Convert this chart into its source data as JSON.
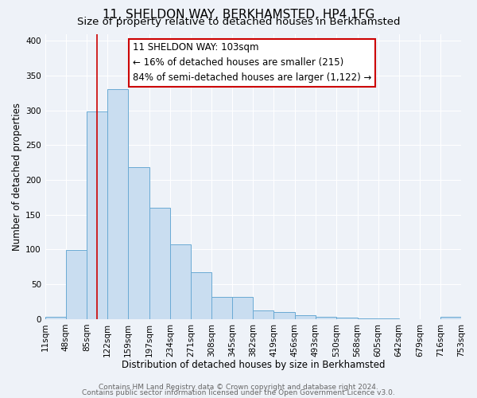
{
  "title": "11, SHELDON WAY, BERKHAMSTED, HP4 1FG",
  "subtitle": "Size of property relative to detached houses in Berkhamsted",
  "xlabel": "Distribution of detached houses by size in Berkhamsted",
  "ylabel": "Number of detached properties",
  "footer_lines": [
    "Contains HM Land Registry data © Crown copyright and database right 2024.",
    "Contains public sector information licensed under the Open Government Licence v3.0."
  ],
  "bin_edges": [
    11,
    48,
    85,
    122,
    159,
    197,
    234,
    271,
    308,
    345,
    382,
    419,
    456,
    493,
    530,
    568,
    605,
    642,
    679,
    716,
    753
  ],
  "bin_counts": [
    3,
    99,
    299,
    330,
    218,
    160,
    107,
    67,
    32,
    32,
    12,
    10,
    5,
    3,
    2,
    1,
    1,
    0,
    0,
    3
  ],
  "bar_facecolor": "#c9ddf0",
  "bar_edgecolor": "#6aaad4",
  "vline_x": 103,
  "vline_color": "#cc0000",
  "annotation_box_text": "11 SHELDON WAY: 103sqm\n← 16% of detached houses are smaller (215)\n84% of semi-detached houses are larger (1,122) →",
  "annotation_box_edgecolor": "#cc0000",
  "annotation_box_facecolor": "white",
  "ylim": [
    0,
    410
  ],
  "xlim": [
    11,
    753
  ],
  "background_color": "#eef2f8",
  "grid_color": "#ffffff",
  "title_fontsize": 11,
  "subtitle_fontsize": 9.5,
  "axis_label_fontsize": 8.5,
  "tick_fontsize": 7.5,
  "annotation_fontsize": 8.5,
  "footer_fontsize": 6.5
}
